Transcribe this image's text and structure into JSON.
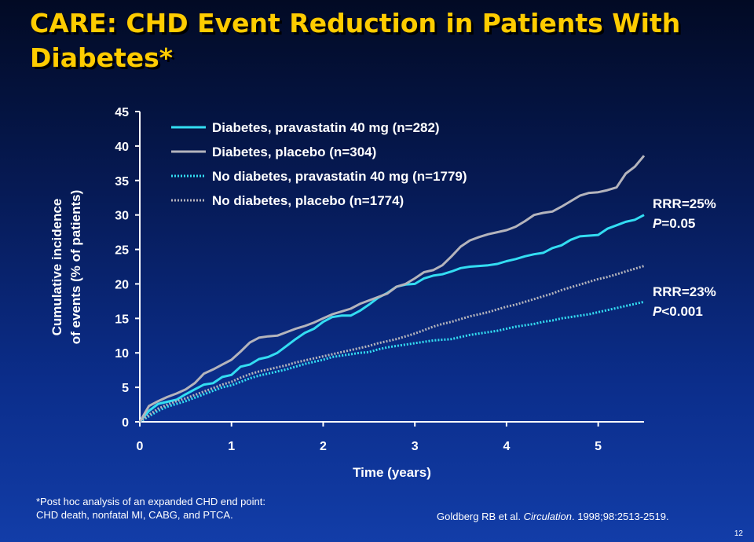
{
  "slide": {
    "title": "CARE: CHD Event Reduction in Patients With Diabetes*",
    "footnote_line1": "*Post hoc analysis of an expanded CHD end point:",
    "footnote_line2": "CHD death, nonfatal MI, CABG, and PTCA.",
    "citation_prefix": "Goldberg RB et al. ",
    "citation_journal": "Circulation",
    "citation_suffix": ". 1998;98:2513-2519.",
    "page_number": "12"
  },
  "colors": {
    "title": "#ffcc00",
    "diabetes_pravastatin": "#33ddf2",
    "diabetes_placebo": "#b4b4bc",
    "nodiabetes_pravastatin": "#33ddf2",
    "nodiabetes_placebo": "#b4b4bc"
  },
  "chart_data": {
    "type": "line",
    "title": "",
    "xlabel": "Time (years)",
    "ylabel_line1": "Cumulative incidence",
    "ylabel_line2": "of events (% of patients)",
    "xlim": [
      0,
      5.5
    ],
    "ylim": [
      0,
      45
    ],
    "xticks": [
      0,
      1,
      2,
      3,
      4,
      5
    ],
    "yticks": [
      0,
      5,
      10,
      15,
      20,
      25,
      30,
      35,
      40,
      45
    ],
    "grid": false,
    "legend_position": "top-left",
    "series": [
      {
        "name": "Diabetes, pravastatin 40 mg (n=282)",
        "style": "solid",
        "color_key": "diabetes_pravastatin",
        "x": [
          0,
          0.1,
          0.2,
          0.3,
          0.4,
          0.5,
          0.6,
          0.7,
          0.8,
          0.9,
          1.0,
          1.1,
          1.2,
          1.3,
          1.4,
          1.5,
          1.6,
          1.7,
          1.8,
          1.9,
          2.0,
          2.1,
          2.2,
          2.3,
          2.4,
          2.5,
          2.6,
          2.7,
          2.8,
          2.9,
          3.0,
          3.1,
          3.2,
          3.3,
          3.4,
          3.5,
          3.6,
          3.7,
          3.8,
          3.9,
          4.0,
          4.1,
          4.2,
          4.3,
          4.4,
          4.5,
          4.6,
          4.7,
          4.8,
          4.9,
          5.0,
          5.1,
          5.2,
          5.3,
          5.4,
          5.5
        ],
        "y": [
          0,
          1.6,
          2.6,
          2.9,
          3.2,
          4.0,
          4.7,
          5.4,
          5.6,
          6.5,
          6.8,
          8.0,
          8.3,
          9.1,
          9.4,
          10.0,
          11.0,
          12.0,
          12.9,
          13.5,
          14.5,
          15.2,
          15.4,
          15.4,
          16.1,
          17.0,
          18.0,
          18.7,
          19.6,
          19.9,
          20.0,
          20.8,
          21.2,
          21.4,
          21.8,
          22.3,
          22.5,
          22.6,
          22.7,
          22.9,
          23.3,
          23.6,
          24.0,
          24.3,
          24.5,
          25.2,
          25.6,
          26.4,
          26.9,
          27.0,
          27.1,
          28.0,
          28.5,
          29.0,
          29.3,
          30.0
        ]
      },
      {
        "name": "Diabetes, placebo (n=304)",
        "style": "solid",
        "color_key": "diabetes_placebo",
        "x": [
          0,
          0.1,
          0.2,
          0.3,
          0.4,
          0.5,
          0.6,
          0.7,
          0.8,
          0.9,
          1.0,
          1.1,
          1.2,
          1.3,
          1.4,
          1.5,
          1.6,
          1.7,
          1.8,
          1.9,
          2.0,
          2.1,
          2.2,
          2.3,
          2.4,
          2.5,
          2.6,
          2.7,
          2.8,
          2.9,
          3.0,
          3.1,
          3.2,
          3.3,
          3.4,
          3.5,
          3.6,
          3.7,
          3.8,
          3.9,
          4.0,
          4.1,
          4.2,
          4.3,
          4.4,
          4.5,
          4.6,
          4.7,
          4.8,
          4.9,
          5.0,
          5.1,
          5.2,
          5.3,
          5.4,
          5.5
        ],
        "y": [
          0,
          2.3,
          3.0,
          3.6,
          4.1,
          4.7,
          5.6,
          7.0,
          7.6,
          8.3,
          9.0,
          10.2,
          11.5,
          12.2,
          12.4,
          12.5,
          13.0,
          13.5,
          13.9,
          14.4,
          15.0,
          15.6,
          16.0,
          16.4,
          17.1,
          17.6,
          18.1,
          18.6,
          19.6,
          20.0,
          20.8,
          21.7,
          22.0,
          22.7,
          24.0,
          25.4,
          26.3,
          26.8,
          27.2,
          27.5,
          27.8,
          28.3,
          29.1,
          30.0,
          30.3,
          30.5,
          31.2,
          32.0,
          32.8,
          33.2,
          33.3,
          33.6,
          34.0,
          36.0,
          37.0,
          38.6
        ]
      },
      {
        "name": "No diabetes, pravastatin 40 mg (n=1779)",
        "style": "dotted",
        "color_key": "nodiabetes_pravastatin",
        "x": [
          0,
          0.1,
          0.2,
          0.3,
          0.4,
          0.5,
          0.6,
          0.7,
          0.8,
          0.9,
          1.0,
          1.1,
          1.2,
          1.3,
          1.4,
          1.5,
          1.6,
          1.7,
          1.8,
          1.9,
          2.0,
          2.1,
          2.2,
          2.3,
          2.4,
          2.5,
          2.6,
          2.7,
          2.8,
          2.9,
          3.0,
          3.1,
          3.2,
          3.3,
          3.4,
          3.5,
          3.6,
          3.7,
          3.8,
          3.9,
          4.0,
          4.1,
          4.2,
          4.3,
          4.4,
          4.5,
          4.6,
          4.7,
          4.8,
          4.9,
          5.0,
          5.1,
          5.2,
          5.3,
          5.4,
          5.5
        ],
        "y": [
          0,
          0.8,
          1.6,
          2.2,
          2.6,
          3.0,
          3.5,
          4.0,
          4.5,
          5.0,
          5.3,
          5.8,
          6.3,
          6.7,
          7.0,
          7.3,
          7.6,
          8.0,
          8.4,
          8.7,
          9.0,
          9.4,
          9.6,
          9.8,
          10.0,
          10.1,
          10.5,
          10.8,
          11.0,
          11.2,
          11.4,
          11.6,
          11.8,
          11.9,
          12.0,
          12.3,
          12.6,
          12.8,
          13.0,
          13.2,
          13.5,
          13.8,
          14.0,
          14.2,
          14.5,
          14.7,
          15.0,
          15.2,
          15.4,
          15.6,
          15.9,
          16.2,
          16.5,
          16.8,
          17.1,
          17.4
        ]
      },
      {
        "name": "No diabetes, placebo (n=1774)",
        "style": "dotted",
        "color_key": "nodiabetes_placebo",
        "x": [
          0,
          0.1,
          0.2,
          0.3,
          0.4,
          0.5,
          0.6,
          0.7,
          0.8,
          0.9,
          1.0,
          1.1,
          1.2,
          1.3,
          1.4,
          1.5,
          1.6,
          1.7,
          1.8,
          1.9,
          2.0,
          2.1,
          2.2,
          2.3,
          2.4,
          2.5,
          2.6,
          2.7,
          2.8,
          2.9,
          3.0,
          3.1,
          3.2,
          3.3,
          3.4,
          3.5,
          3.6,
          3.7,
          3.8,
          3.9,
          4.0,
          4.1,
          4.2,
          4.3,
          4.4,
          4.5,
          4.6,
          4.7,
          4.8,
          4.9,
          5.0,
          5.1,
          5.2,
          5.3,
          5.4,
          5.5
        ],
        "y": [
          0,
          1.0,
          1.9,
          2.5,
          3.0,
          3.4,
          3.9,
          4.4,
          4.9,
          5.4,
          5.8,
          6.4,
          6.9,
          7.3,
          7.6,
          7.9,
          8.2,
          8.6,
          8.9,
          9.2,
          9.5,
          9.8,
          10.1,
          10.4,
          10.7,
          11.0,
          11.4,
          11.7,
          12.0,
          12.4,
          12.8,
          13.3,
          13.8,
          14.2,
          14.5,
          14.9,
          15.3,
          15.6,
          15.9,
          16.3,
          16.7,
          17.0,
          17.4,
          17.8,
          18.2,
          18.6,
          19.1,
          19.5,
          19.9,
          20.3,
          20.7,
          21.0,
          21.4,
          21.8,
          22.2,
          22.6
        ]
      }
    ],
    "annotations": [
      {
        "rrr": "RRR=25%",
        "p_letter": "P",
        "p_value": "=0.05"
      },
      {
        "rrr": "RRR=23%",
        "p_letter": "P",
        "p_value": "<0.001"
      }
    ]
  }
}
